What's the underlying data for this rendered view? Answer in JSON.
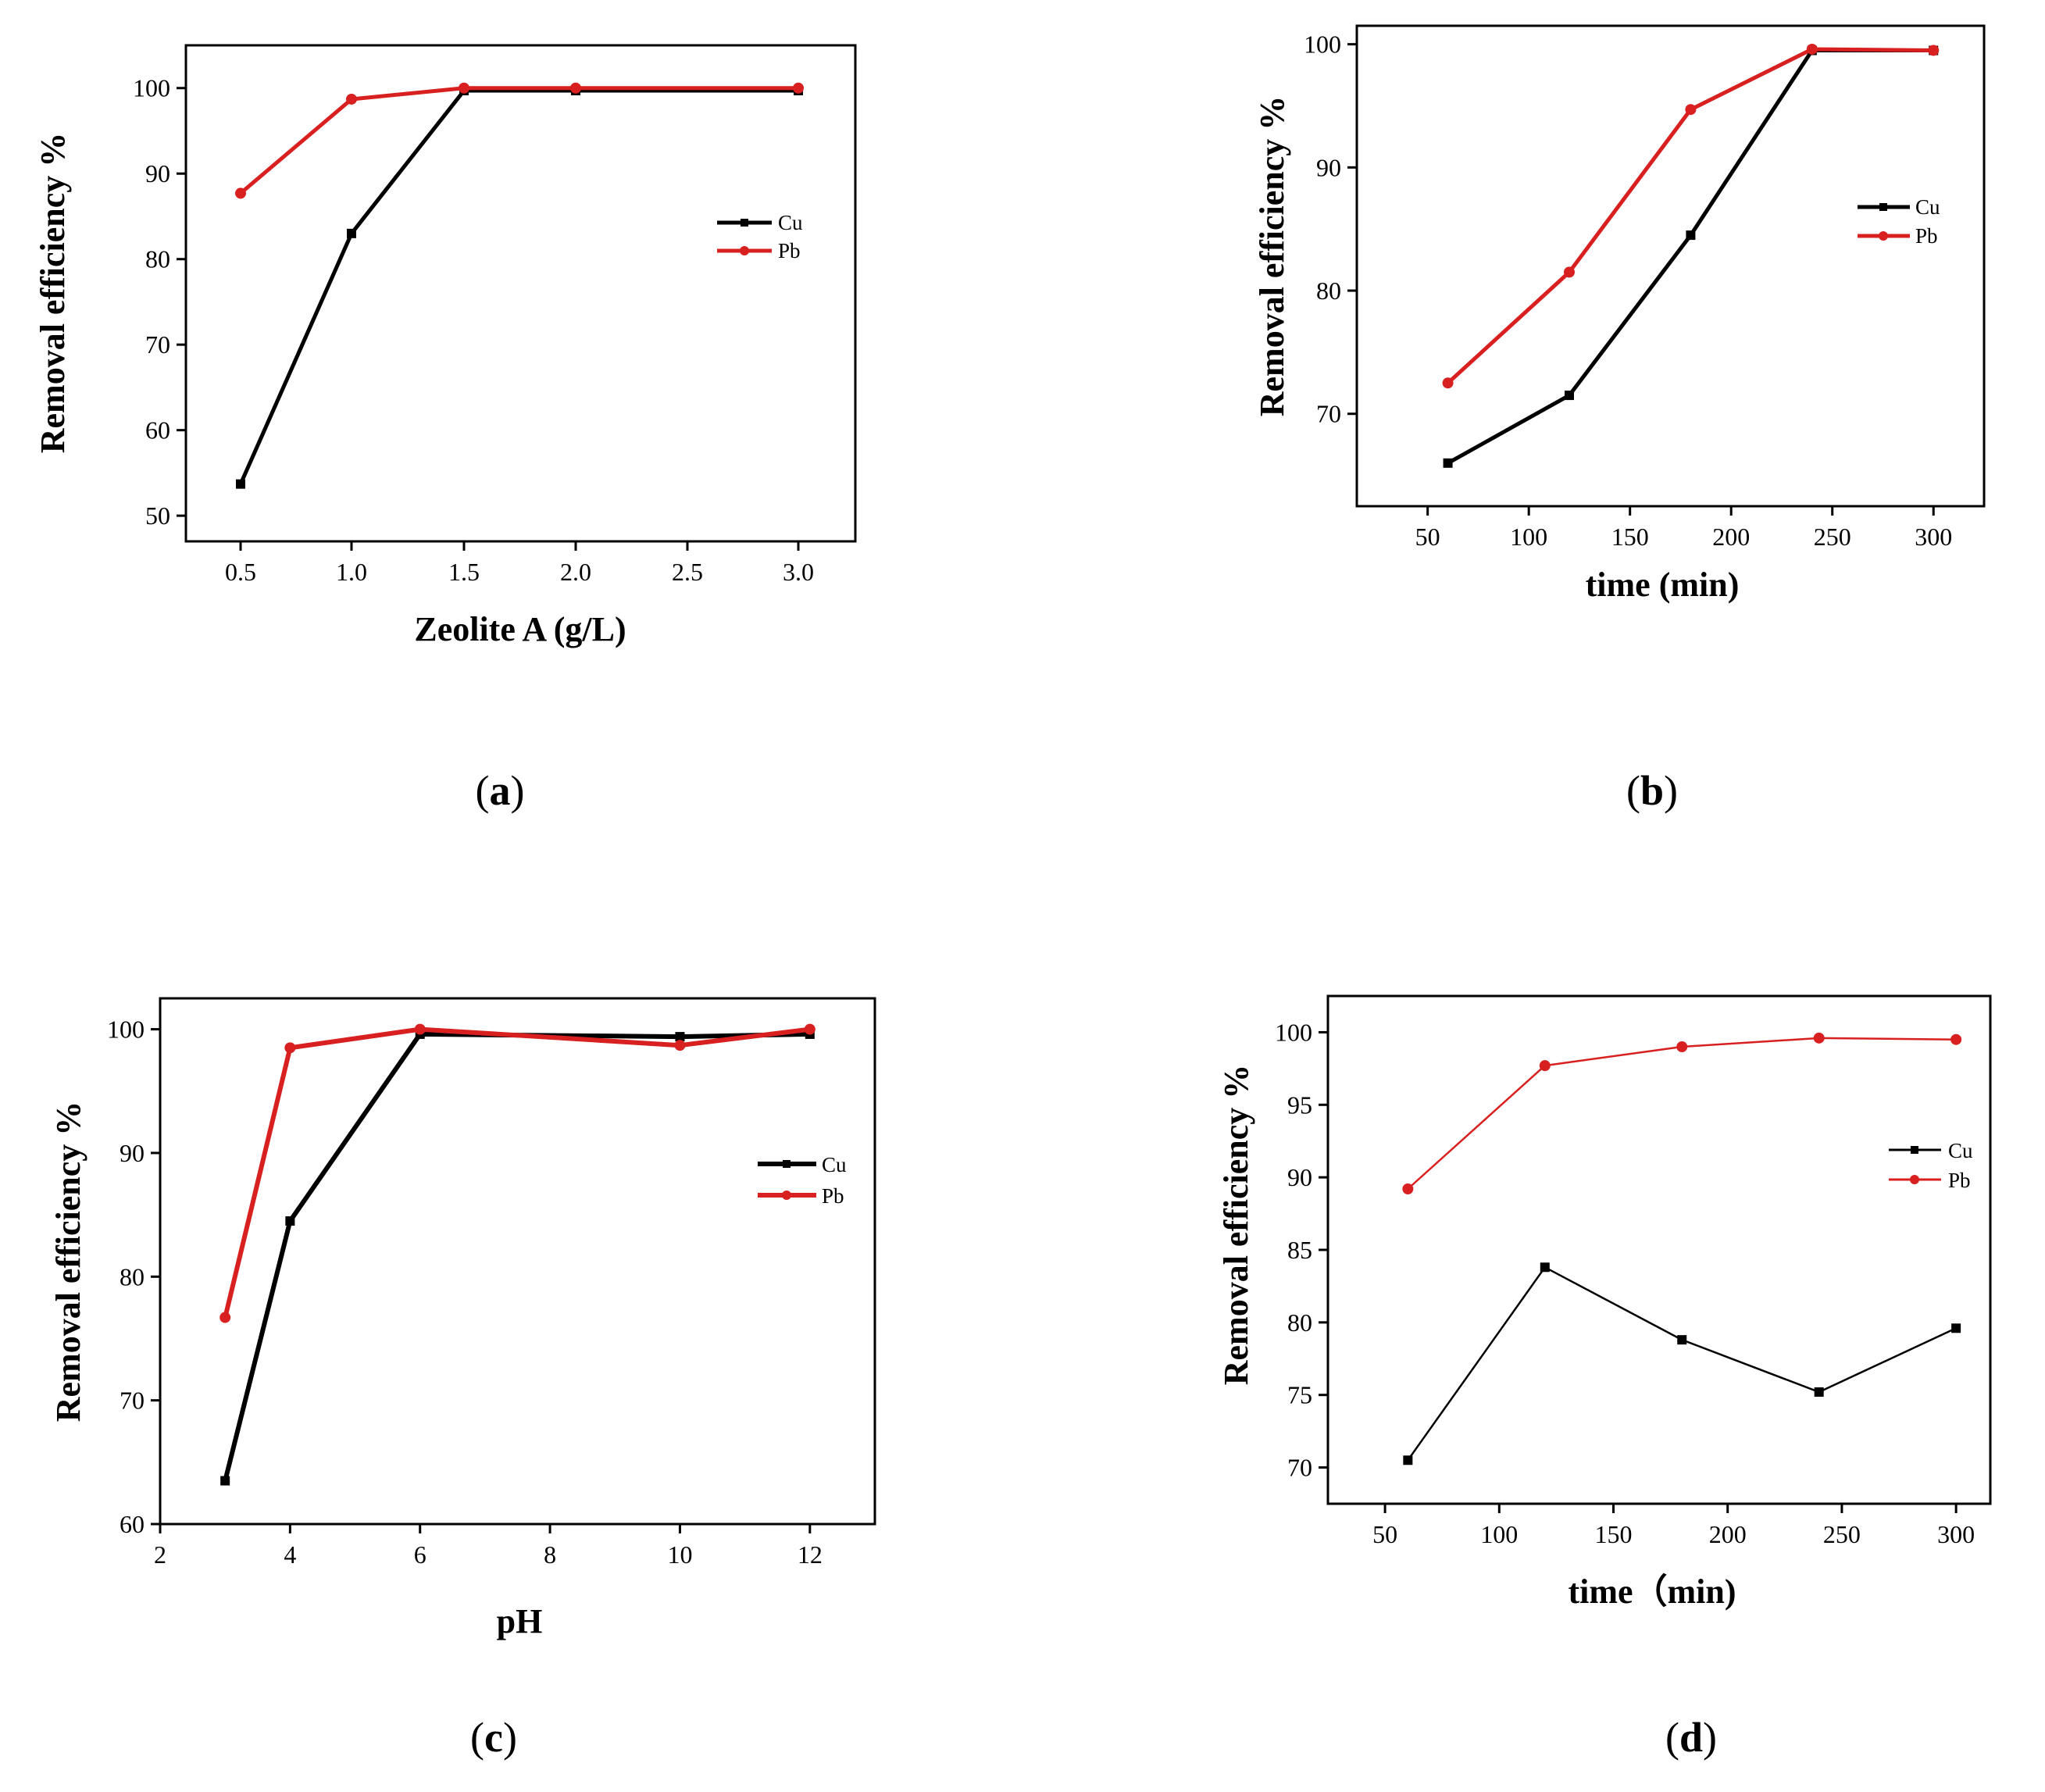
{
  "figure": {
    "colors": {
      "cu": "#000000",
      "pb": "#d92020",
      "axis": "#000000",
      "background": "#ffffff"
    },
    "line_widths": {
      "a": 5,
      "b": 5,
      "c": 6,
      "d": 2.5
    }
  },
  "chart_data": [
    {
      "id": "a",
      "panel_label": "a",
      "type": "line",
      "title": "",
      "xlabel": "Zeolite A (g/L)",
      "ylabel": "Removal  efficiency %",
      "x_scale": "categorical",
      "categories": [
        "0.5",
        "1.0",
        "1.5",
        "2.0",
        "2.5",
        "3.0"
      ],
      "ylim": [
        47,
        105
      ],
      "yticks": [
        50,
        60,
        70,
        80,
        90,
        100
      ],
      "legend_position": "center-right",
      "grid": false,
      "series": [
        {
          "name": "Cu",
          "marker": "square",
          "points": [
            [
              0,
              53.7
            ],
            [
              1,
              83.0
            ],
            [
              2,
              99.7
            ],
            [
              3,
              99.7
            ],
            [
              5,
              99.7
            ]
          ]
        },
        {
          "name": "Pb",
          "marker": "circle",
          "points": [
            [
              0,
              87.7
            ],
            [
              1,
              98.7
            ],
            [
              2,
              100.0
            ],
            [
              3,
              100.0
            ],
            [
              5,
              100.0
            ]
          ]
        }
      ]
    },
    {
      "id": "b",
      "panel_label": "b",
      "type": "line",
      "title": "",
      "xlabel": "time (min)",
      "ylabel": "Removal  efficiency %",
      "x_scale": "linear",
      "xlim": [
        15,
        325
      ],
      "xticks": [
        50,
        100,
        150,
        200,
        250,
        300
      ],
      "ylim": [
        62.5,
        101.5
      ],
      "yticks": [
        70,
        80,
        90,
        100
      ],
      "legend_position": "center-right",
      "grid": false,
      "series": [
        {
          "name": "Cu",
          "marker": "square",
          "points": [
            [
              60,
              66.0
            ],
            [
              120,
              71.5
            ],
            [
              180,
              84.5
            ],
            [
              240,
              99.5
            ],
            [
              300,
              99.5
            ]
          ]
        },
        {
          "name": "Pb",
          "marker": "circle",
          "points": [
            [
              60,
              72.5
            ],
            [
              120,
              81.5
            ],
            [
              180,
              94.7
            ],
            [
              240,
              99.6
            ],
            [
              300,
              99.5
            ]
          ]
        }
      ]
    },
    {
      "id": "c",
      "panel_label": "c",
      "type": "line",
      "title": "",
      "xlabel": "pH",
      "ylabel": "Removal  efficiency %",
      "x_scale": "linear",
      "xlim": [
        2,
        13
      ],
      "xticks": [
        2,
        4,
        6,
        8,
        10,
        12
      ],
      "ylim": [
        60,
        102.5
      ],
      "yticks": [
        60,
        70,
        80,
        90,
        100
      ],
      "legend_position": "center-right",
      "grid": false,
      "series": [
        {
          "name": "Cu",
          "marker": "square",
          "points": [
            [
              3,
              63.5
            ],
            [
              4,
              84.5
            ],
            [
              6,
              99.6
            ],
            [
              10,
              99.4
            ],
            [
              12,
              99.6
            ]
          ]
        },
        {
          "name": "Pb",
          "marker": "circle",
          "points": [
            [
              3,
              76.7
            ],
            [
              4,
              98.5
            ],
            [
              6,
              100.0
            ],
            [
              10,
              98.7
            ],
            [
              12,
              100.0
            ]
          ]
        }
      ]
    },
    {
      "id": "d",
      "panel_label": "d",
      "type": "line",
      "title": "",
      "xlabel": "time（min)",
      "ylabel": "Removal  efficiency %",
      "x_scale": "linear",
      "xlim": [
        25,
        315
      ],
      "xticks": [
        50,
        100,
        150,
        200,
        250,
        300
      ],
      "ylim": [
        67.5,
        102.5
      ],
      "yticks": [
        70,
        75,
        80,
        85,
        90,
        95,
        100
      ],
      "legend_position": "center-right",
      "grid": false,
      "series": [
        {
          "name": "Cu",
          "marker": "square",
          "points": [
            [
              60,
              70.5
            ],
            [
              120,
              83.8
            ],
            [
              180,
              78.8
            ],
            [
              240,
              75.2
            ],
            [
              300,
              79.6
            ]
          ]
        },
        {
          "name": "Pb",
          "marker": "circle",
          "points": [
            [
              60,
              89.2
            ],
            [
              120,
              97.7
            ],
            [
              180,
              99.0
            ],
            [
              240,
              99.6
            ],
            [
              300,
              99.5
            ]
          ]
        }
      ]
    }
  ]
}
